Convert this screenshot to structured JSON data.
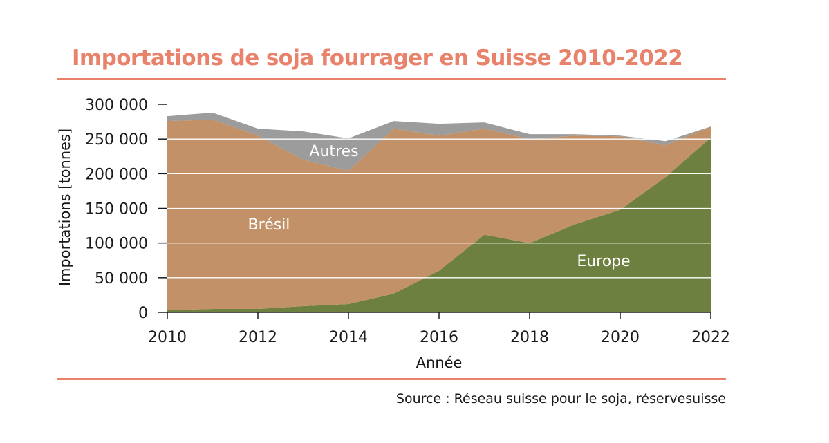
{
  "colors": {
    "accent": "#e8826b",
    "europe": "#6e8040",
    "bresil": "#c29167",
    "autres": "#9c9c9c",
    "grid": "#ffffff",
    "axis": "#1a1a1a"
  },
  "chart_data": {
    "type": "area",
    "stacked": true,
    "title": "Importations de soja fourrager en Suisse 2010-2022",
    "xlabel": "Année",
    "ylabel": "Importations [tonnes]",
    "x": [
      2010,
      2011,
      2012,
      2013,
      2014,
      2015,
      2016,
      2017,
      2018,
      2019,
      2020,
      2021,
      2022
    ],
    "xlim": [
      2010,
      2022
    ],
    "ylim": [
      0,
      300000
    ],
    "x_ticks": [
      2010,
      2012,
      2014,
      2016,
      2018,
      2020,
      2022
    ],
    "x_tick_labels": [
      "2010",
      "2012",
      "2014",
      "2016",
      "2018",
      "2020",
      "2022"
    ],
    "y_ticks": [
      0,
      50000,
      100000,
      150000,
      200000,
      250000,
      300000
    ],
    "y_tick_labels": [
      "0",
      "50 000",
      "100 000",
      "150 000",
      "200 000",
      "250 000",
      "300 000"
    ],
    "grid": true,
    "series": [
      {
        "name": "Europe",
        "key": "europe",
        "values": [
          3000,
          5000,
          5000,
          9000,
          12000,
          27000,
          60000,
          112000,
          100000,
          127000,
          148000,
          195000,
          252000
        ]
      },
      {
        "name": "Brésil",
        "key": "bresil",
        "values": [
          273000,
          273000,
          250000,
          211000,
          192000,
          238000,
          195000,
          153000,
          150000,
          128000,
          106000,
          46000,
          16000
        ]
      },
      {
        "name": "Autres",
        "key": "autres",
        "values": [
          7000,
          10000,
          10000,
          41000,
          47000,
          11000,
          17000,
          9000,
          7000,
          2000,
          1000,
          6000,
          0
        ]
      }
    ],
    "series_labels": [
      {
        "series": "Autres",
        "text": "Autres"
      },
      {
        "series": "Brésil",
        "text": "Brésil"
      },
      {
        "series": "Europe",
        "text": "Europe"
      }
    ],
    "source": "Source : Réseau suisse pour le soja, réservesuisse"
  }
}
